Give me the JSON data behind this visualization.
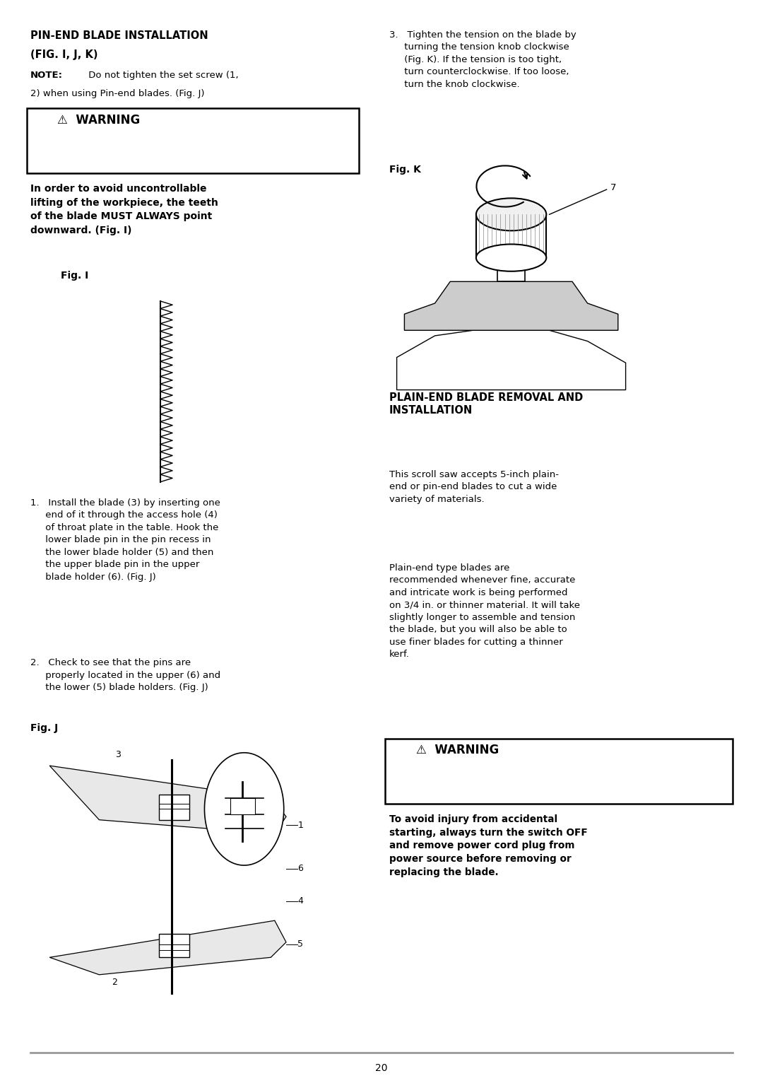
{
  "page_width": 10.8,
  "page_height": 15.32,
  "bg_color": "#ffffff",
  "text_color": "#000000",
  "page_number": "20",
  "sections": {
    "left_header_line1": "PIN-END BLADE INSTALLATION",
    "left_header_line2": "(FIG. I, J, K)",
    "note_bold": "NOTE:",
    "note_rest": " Do not tighten the set screw (1,\n2) when using Pin-end blades. (Fig. J)",
    "warning1_title": "⚠  WARNING",
    "warning1_text": "In order to avoid uncontrollable\nlifting of the workpiece, the teeth\nof the blade MUST ALWAYS point\ndownward. (Fig. I)",
    "fig_i_label": "Fig. I",
    "step1": "1.   Install the blade (3) by inserting one\n     end of it through the access hole (4)\n     of throat plate in the table. Hook the\n     lower blade pin in the pin recess in\n     the lower blade holder (5) and then\n     the upper blade pin in the upper\n     blade holder (6). (Fig. J)",
    "step2": "2.   Check to see that the pins are\n     properly located in the upper (6) and\n     the lower (5) blade holders. (Fig. J)",
    "fig_j_label": "Fig. J",
    "right_step3": "3.   Tighten the tension on the blade by\n     turning the tension knob clockwise\n     (Fig. K). If the tension is too tight,\n     turn counterclockwise. If too loose,\n     turn the knob clockwise.",
    "fig_k_label": "Fig. K",
    "plain_end_header": "PLAIN-END BLADE REMOVAL AND\nINSTALLATION",
    "plain_end_text1": "This scroll saw accepts 5-inch plain-\nend or pin-end blades to cut a wide\nvariety of materials.",
    "plain_end_text2": "Plain-end type blades are\nrecommended whenever fine, accurate\nand intricate work is being performed\non 3/4 in. or thinner material. It will take\nslightly longer to assemble and tension\nthe blade, but you will also be able to\nuse finer blades for cutting a thinner\nkerf.",
    "warning2_title": "⚠  WARNING",
    "warning2_text": "To avoid injury from accidental\nstarting, always turn the switch OFF\nand remove power cord plug from\npower source before removing or\nreplacing the blade."
  }
}
